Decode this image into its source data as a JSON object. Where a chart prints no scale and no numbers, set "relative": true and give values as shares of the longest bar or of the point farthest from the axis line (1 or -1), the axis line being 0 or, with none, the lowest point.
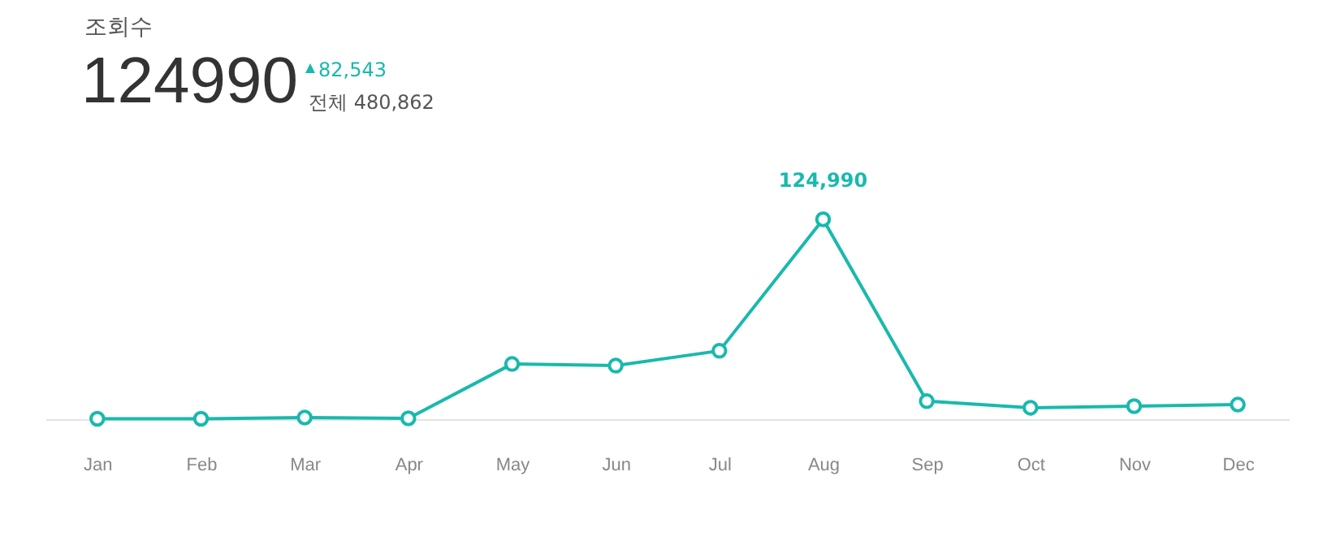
{
  "chart_data": {
    "type": "line",
    "title": "조회수",
    "subtitle": "124990",
    "annotations": [
      "82,543",
      "전체 480,862"
    ],
    "categories": [
      "Jan",
      "Feb",
      "Mar",
      "Apr",
      "May",
      "Jun",
      "Jul",
      "Aug",
      "Sep",
      "Oct",
      "Nov",
      "Dec"
    ],
    "series": [
      {
        "color": "#19b9ad",
        "values": [
          0.002,
          0.002,
          0.008,
          0.004,
          0.276,
          0.268,
          0.342,
          1,
          0.09,
          0.057,
          0.065,
          0.073
        ]
      }
    ],
    "value_labels": [
      null,
      null,
      null,
      null,
      null,
      null,
      null,
      "124,990",
      null,
      null,
      null,
      null
    ],
    "relative": true,
    "grid": false,
    "marker": "circle",
    "line_style": "solid"
  }
}
